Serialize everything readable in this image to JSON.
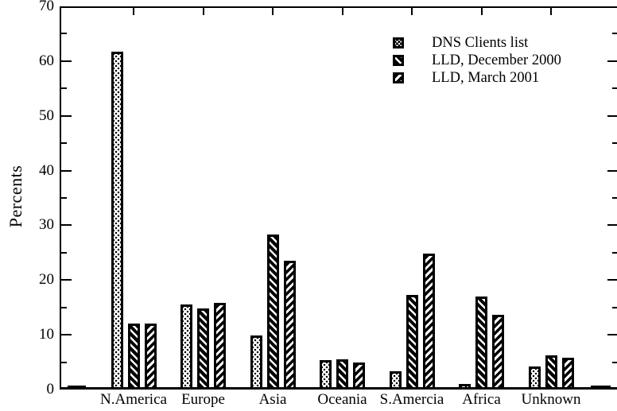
{
  "chart_data": {
    "type": "bar",
    "title": "",
    "xlabel": "",
    "ylabel": "Percents",
    "ylim": [
      0,
      70
    ],
    "y_major_step": 10,
    "y_minor_step": 5,
    "y_tick_labels": [
      "0",
      "10",
      "20",
      "30",
      "40",
      "50",
      "60",
      "70"
    ],
    "grid": false,
    "legend_position": "top-right-inside",
    "foreground_color": "#000000",
    "background_color": "#ffffff",
    "categories": [
      "N.America",
      "Europe",
      "Asia",
      "Oceania",
      "S.Amercia",
      "Africa",
      "Unknown"
    ],
    "series": [
      {
        "name": "DNS Clients list",
        "pattern": "dots",
        "values": [
          61.7,
          15.6,
          9.9,
          5.4,
          3.3,
          0.8,
          4.2
        ]
      },
      {
        "name": "LLD, December 2000",
        "pattern": "hatch-backslash",
        "values": [
          12.1,
          14.8,
          28.3,
          5.5,
          17.3,
          17.0,
          6.2
        ]
      },
      {
        "name": "LLD, March 2001",
        "pattern": "hatch-forward",
        "values": [
          12.1,
          15.8,
          23.6,
          4.9,
          24.9,
          13.6,
          5.8
        ]
      }
    ],
    "baseline_edge_dashes": {
      "left_value": 0.3,
      "right_value": 0.3
    }
  }
}
